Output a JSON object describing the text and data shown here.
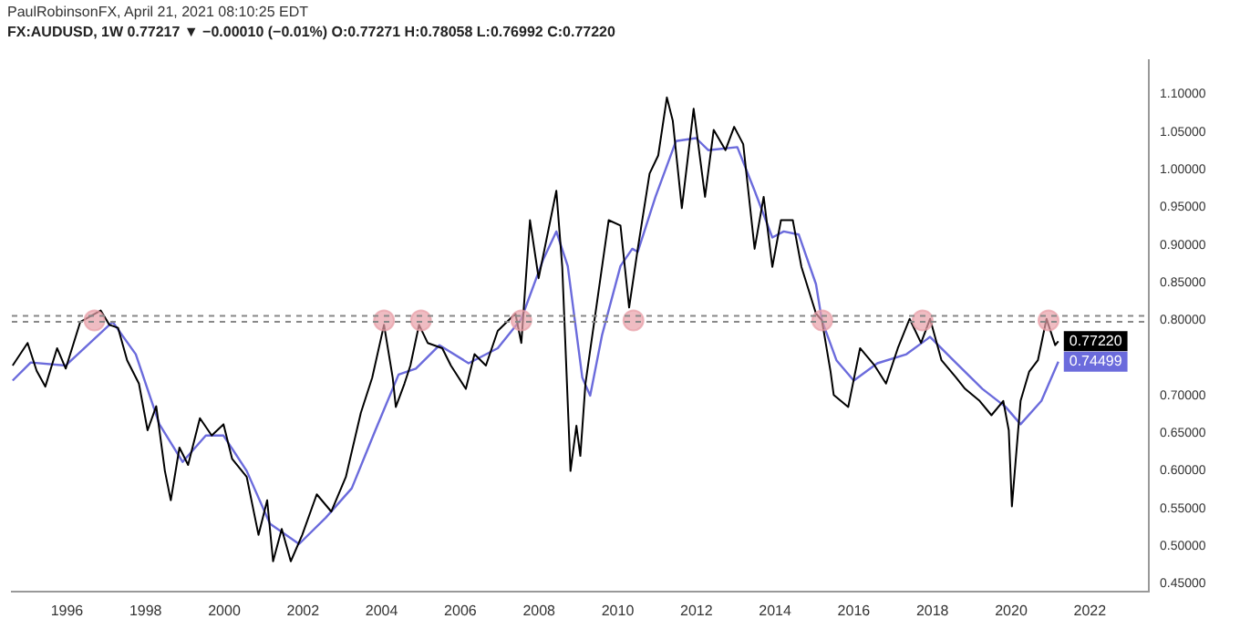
{
  "chart_data": {
    "type": "line",
    "title": "PaulRobinsonFX, April 21, 2021 08:10:25 EDT",
    "subtitle": "FX:AUDUSD, 1W 0.77217 ▼ −0.00010 (−0.01%) O:0.77271 H:0.78058 L:0.76992 C:0.77220",
    "xlim": [
      1994.6,
      2023.5
    ],
    "xticks": [
      1996,
      1998,
      2000,
      2002,
      2004,
      2006,
      2008,
      2010,
      2012,
      2014,
      2016,
      2018,
      2020,
      2022
    ],
    "ylim": [
      0.44,
      1.145
    ],
    "yticks": [
      {
        "value": 0.45,
        "label": "0.45000"
      },
      {
        "value": 0.5,
        "label": "0.50000"
      },
      {
        "value": 0.55,
        "label": "0.55000"
      },
      {
        "value": 0.6,
        "label": "0.60000"
      },
      {
        "value": 0.65,
        "label": "0.65000"
      },
      {
        "value": 0.7,
        "label": "0.70000"
      },
      {
        "value": 0.8,
        "label": "0.80000"
      },
      {
        "value": 0.85,
        "label": "0.85000"
      },
      {
        "value": 0.9,
        "label": "0.90000"
      },
      {
        "value": 0.95,
        "label": "0.95000"
      },
      {
        "value": 1.0,
        "label": "1.00000"
      },
      {
        "value": 1.05,
        "label": "1.05000"
      },
      {
        "value": 1.1,
        "label": "1.10000"
      }
    ],
    "grid": false,
    "legend": false,
    "series": [
      {
        "type": "line",
        "marker": "none",
        "color": "#000000",
        "x": [
          1994.62,
          1995.0,
          1995.23,
          1995.45,
          1995.75,
          1995.97,
          1996.34,
          1996.86,
          1997.08,
          1997.3,
          1997.53,
          1997.83,
          1998.05,
          1998.27,
          1998.49,
          1998.64,
          1998.86,
          1999.08,
          1999.38,
          1999.68,
          1999.98,
          2000.2,
          2000.57,
          2000.87,
          2001.09,
          2001.24,
          2001.46,
          2001.69,
          2001.98,
          2002.35,
          2002.72,
          2003.09,
          2003.47,
          2003.76,
          2004.06,
          2004.28,
          2004.36,
          2004.58,
          2004.73,
          2004.95,
          2005.17,
          2005.54,
          2005.76,
          2006.14,
          2006.36,
          2006.65,
          2006.95,
          2007.4,
          2007.55,
          2007.77,
          2007.99,
          2008.44,
          2008.59,
          2008.8,
          2008.95,
          2009.05,
          2009.18,
          2009.77,
          2010.07,
          2010.29,
          2010.51,
          2010.81,
          2011.03,
          2011.25,
          2011.4,
          2011.63,
          2011.93,
          2012.22,
          2012.44,
          2012.74,
          2012.96,
          2013.19,
          2013.48,
          2013.71,
          2013.93,
          2014.15,
          2014.45,
          2014.67,
          2015.04,
          2015.19,
          2015.41,
          2015.49,
          2015.86,
          2016.16,
          2016.53,
          2016.82,
          2017.12,
          2017.42,
          2017.71,
          2017.94,
          2018.23,
          2018.6,
          2018.83,
          2019.2,
          2019.5,
          2019.8,
          2019.94,
          2020.02,
          2020.24,
          2020.46,
          2020.68,
          2020.9,
          2021.12,
          2021.2
        ],
        "values": [
          0.74,
          0.77,
          0.733,
          0.712,
          0.763,
          0.736,
          0.798,
          0.813,
          0.794,
          0.79,
          0.747,
          0.716,
          0.654,
          0.686,
          0.6,
          0.561,
          0.631,
          0.608,
          0.67,
          0.647,
          0.662,
          0.616,
          0.592,
          0.515,
          0.561,
          0.48,
          0.523,
          0.48,
          0.515,
          0.569,
          0.546,
          0.592,
          0.677,
          0.724,
          0.794,
          0.724,
          0.685,
          0.716,
          0.74,
          0.794,
          0.77,
          0.763,
          0.74,
          0.709,
          0.755,
          0.74,
          0.786,
          0.809,
          0.77,
          0.933,
          0.856,
          0.972,
          0.871,
          0.6,
          0.66,
          0.62,
          0.716,
          0.933,
          0.926,
          0.817,
          0.895,
          0.995,
          1.019,
          1.096,
          1.065,
          0.949,
          1.081,
          0.964,
          1.053,
          1.026,
          1.057,
          1.034,
          0.895,
          0.964,
          0.871,
          0.933,
          0.933,
          0.871,
          0.809,
          0.8,
          0.732,
          0.701,
          0.685,
          0.763,
          0.74,
          0.716,
          0.763,
          0.802,
          0.77,
          0.802,
          0.747,
          0.724,
          0.709,
          0.693,
          0.674,
          0.693,
          0.654,
          0.553,
          0.693,
          0.732,
          0.747,
          0.802,
          0.767,
          0.7722
        ],
        "value_labels": [
          null,
          null,
          null,
          null,
          null,
          null,
          null,
          null,
          null,
          null,
          null,
          null,
          null,
          null,
          null,
          null,
          null,
          null,
          null,
          null,
          null,
          null,
          null,
          null,
          null,
          null,
          null,
          null,
          null,
          null,
          null,
          null,
          null,
          null,
          null,
          null,
          null,
          null,
          null,
          null,
          null,
          null,
          null,
          null,
          null,
          null,
          null,
          null,
          null,
          null,
          null,
          null,
          null,
          null,
          null,
          null,
          null,
          null,
          null,
          null,
          null,
          null,
          null,
          null,
          null,
          null,
          null,
          null,
          null,
          null,
          null,
          null,
          null,
          null,
          null,
          null,
          null,
          null,
          null,
          null,
          null,
          null,
          null,
          null,
          null,
          null,
          null,
          null,
          null,
          null,
          null,
          null,
          null,
          null,
          null,
          null,
          null,
          null,
          null,
          null,
          null,
          null,
          null,
          "0.77220"
        ]
      },
      {
        "type": "line",
        "marker": "none",
        "color": "#6b6bdc",
        "x": [
          1994.62,
          1995.08,
          1995.97,
          1997.16,
          1997.75,
          1998.35,
          1998.94,
          1999.53,
          1999.98,
          2000.57,
          2001.16,
          2001.9,
          2002.58,
          2003.24,
          2003.84,
          2004.43,
          2004.87,
          2005.47,
          2006.21,
          2006.95,
          2007.55,
          2008.1,
          2008.44,
          2008.73,
          2009.1,
          2009.3,
          2009.6,
          2010.07,
          2010.37,
          2010.51,
          2010.96,
          2011.48,
          2011.99,
          2012.3,
          2013.04,
          2013.48,
          2013.93,
          2014.22,
          2014.6,
          2015.04,
          2015.19,
          2015.56,
          2016.0,
          2016.6,
          2017.34,
          2017.94,
          2018.53,
          2019.27,
          2019.86,
          2020.24,
          2020.77,
          2021.2
        ],
        "values": [
          0.72,
          0.744,
          0.74,
          0.798,
          0.755,
          0.662,
          0.612,
          0.647,
          0.647,
          0.6,
          0.53,
          0.503,
          0.538,
          0.577,
          0.654,
          0.728,
          0.736,
          0.767,
          0.743,
          0.763,
          0.802,
          0.88,
          0.918,
          0.872,
          0.724,
          0.7,
          0.78,
          0.872,
          0.895,
          0.891,
          0.964,
          1.038,
          1.042,
          1.026,
          1.03,
          0.972,
          0.91,
          0.918,
          0.914,
          0.848,
          0.8,
          0.747,
          0.72,
          0.743,
          0.755,
          0.778,
          0.747,
          0.709,
          0.685,
          0.662,
          0.693,
          0.74499
        ],
        "value_labels": [
          null,
          null,
          null,
          null,
          null,
          null,
          null,
          null,
          null,
          null,
          null,
          null,
          null,
          null,
          null,
          null,
          null,
          null,
          null,
          null,
          null,
          null,
          null,
          null,
          null,
          null,
          null,
          null,
          null,
          null,
          null,
          null,
          null,
          null,
          null,
          null,
          null,
          null,
          null,
          null,
          null,
          null,
          null,
          null,
          null,
          null,
          null,
          null,
          null,
          null,
          null,
          "0.74499"
        ]
      },
      {
        "type": "scatter",
        "marker": "circle",
        "color": "#e8a0a8",
        "x": [
          1996.7,
          2004.06,
          2005.0,
          2007.55,
          2010.4,
          2015.2,
          2017.75,
          2020.95
        ],
        "values": [
          0.8,
          0.8,
          0.8,
          0.8,
          0.8,
          0.8,
          0.8,
          0.8
        ]
      }
    ],
    "ref_lines": [
      {
        "axis": "y",
        "value": 0.806,
        "color": "#888888",
        "line_style": "dashed"
      },
      {
        "axis": "y",
        "value": 0.798,
        "color": "#888888",
        "line_style": "dashed"
      }
    ]
  }
}
